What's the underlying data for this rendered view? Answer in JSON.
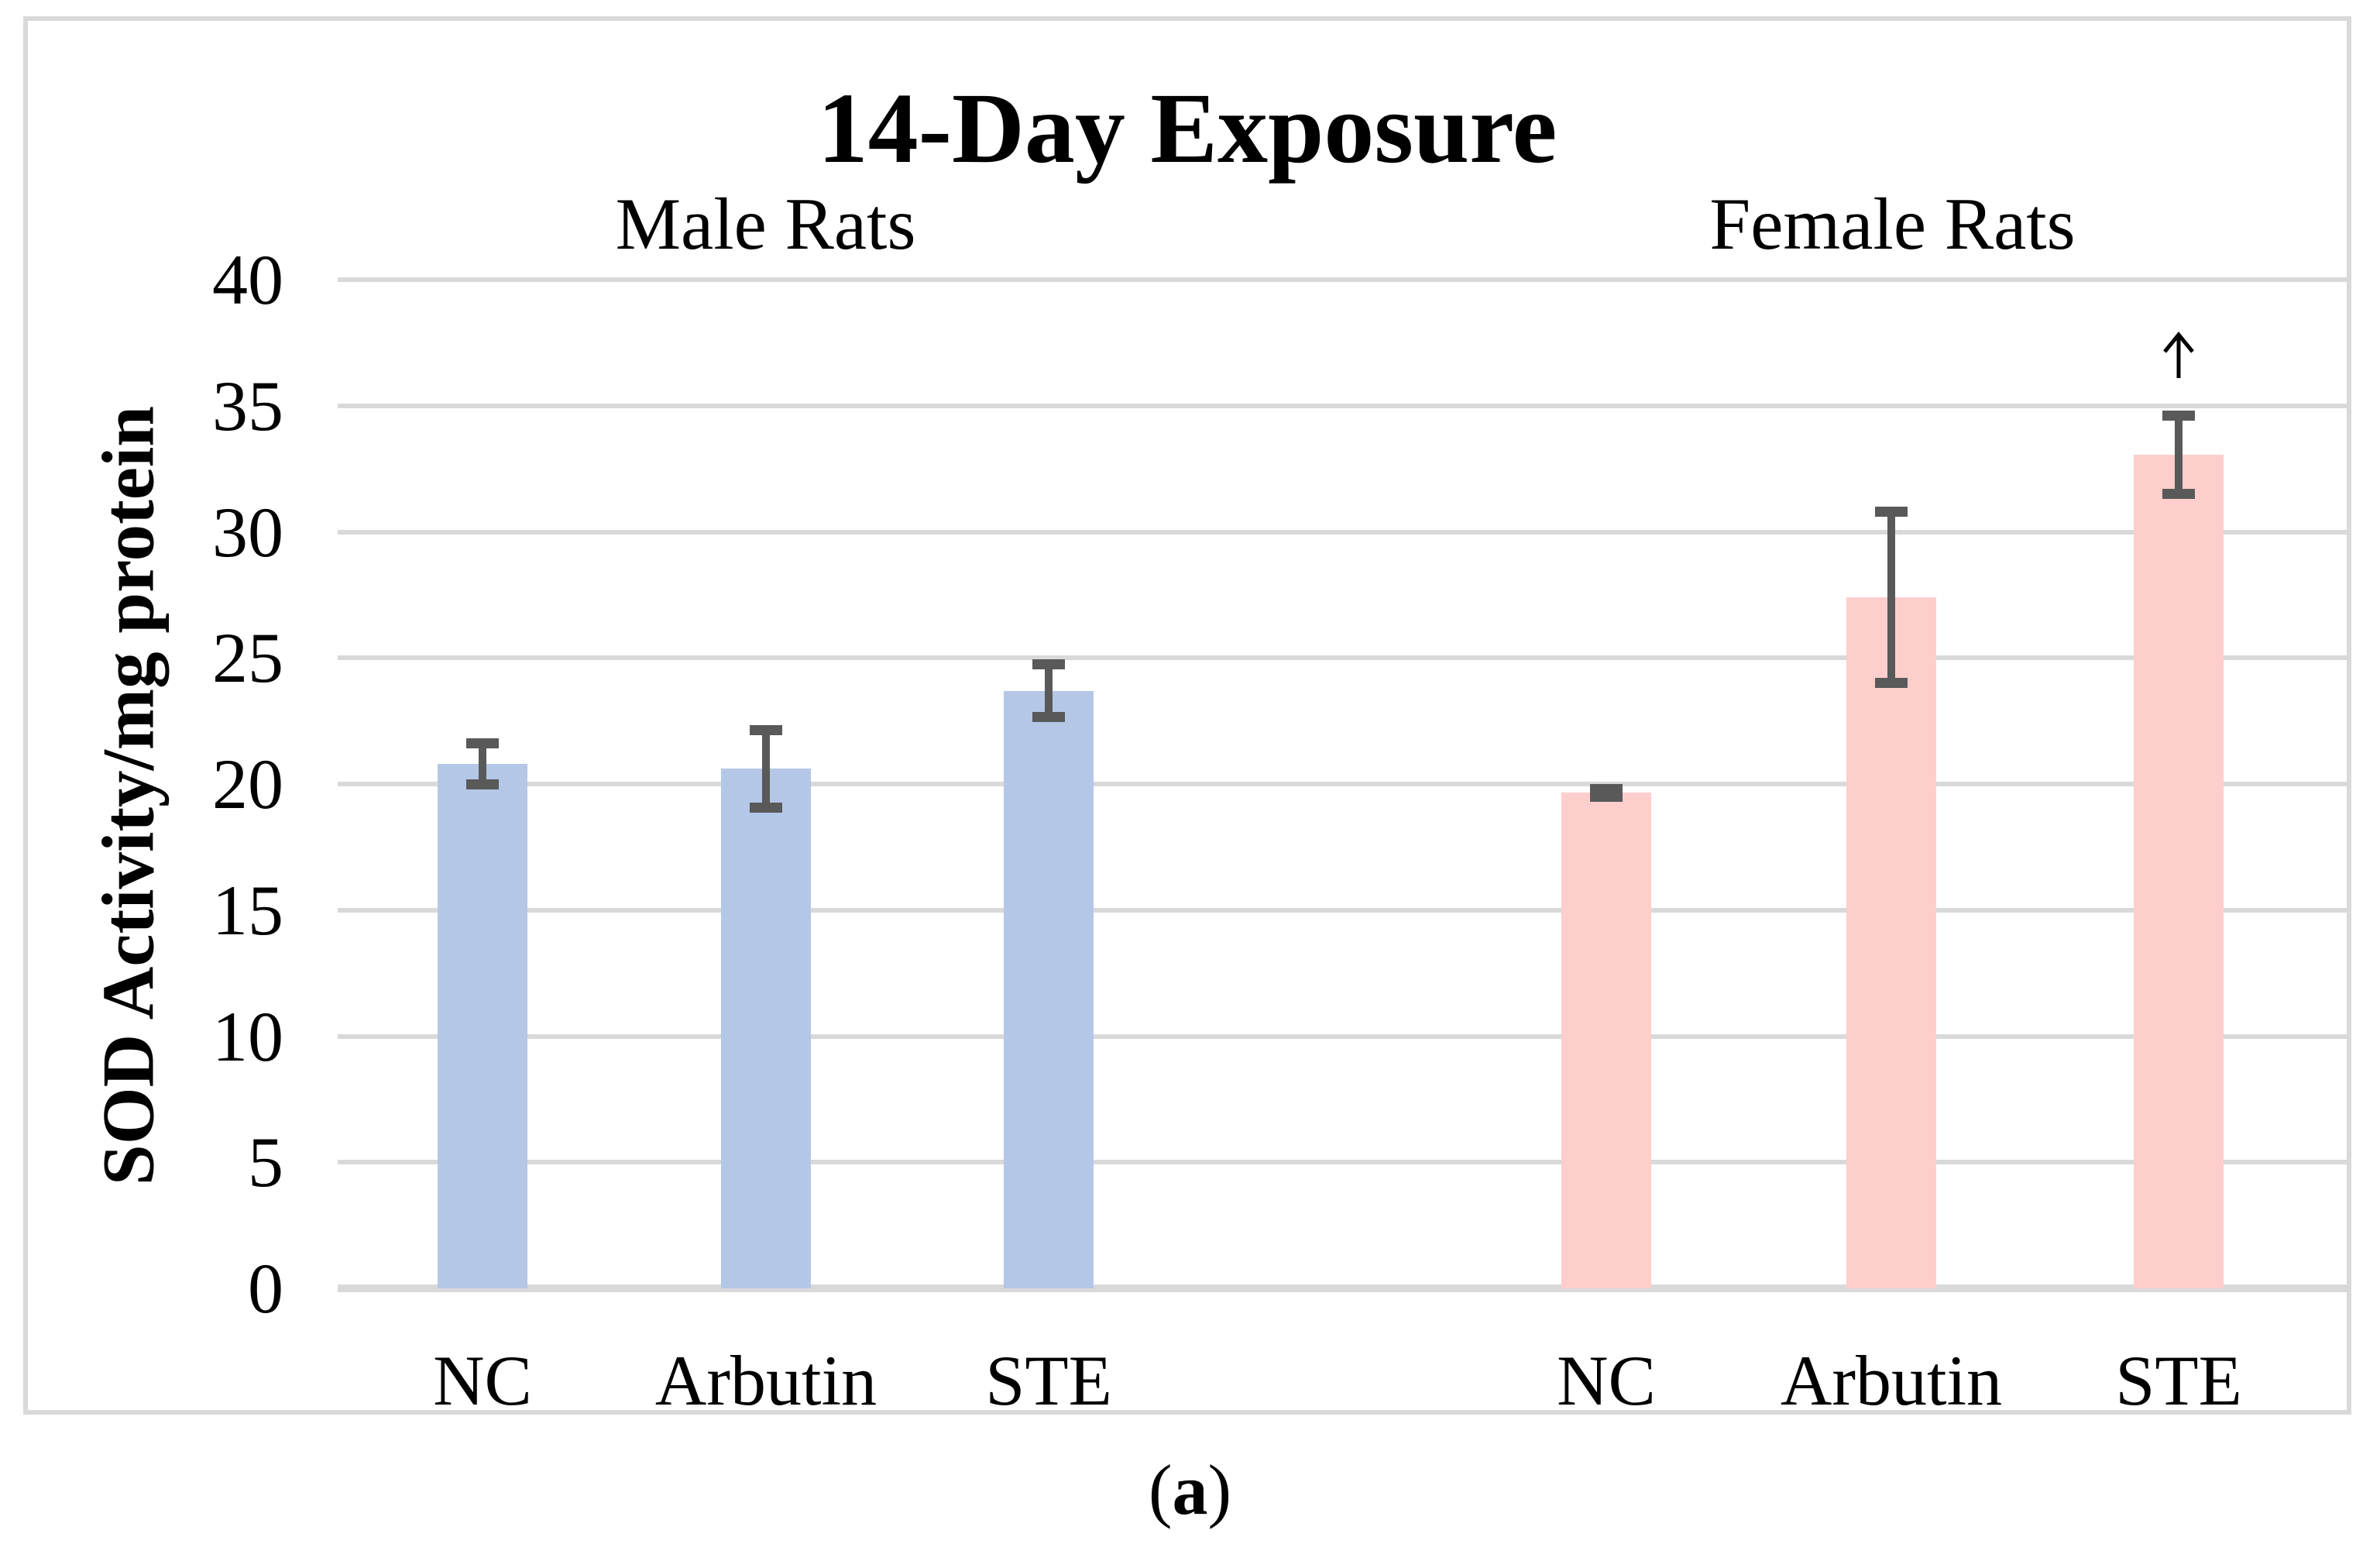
{
  "figure": {
    "caption_open": "(",
    "caption_letter": "a",
    "caption_close": ")"
  },
  "chart_data": {
    "type": "bar",
    "title": "14-Day Exposure",
    "ylabel": "SOD Activity/mg protein",
    "xlabel": "",
    "ylim": [
      0,
      40
    ],
    "yticks": [
      0,
      5,
      10,
      15,
      20,
      25,
      30,
      35,
      40
    ],
    "grid": true,
    "gridline_color": "#D9D9D9",
    "error_bar_color": "#595959",
    "groups": [
      {
        "name": "Male Rats",
        "bar_color": "#B4C7E7",
        "categories": [
          "NC",
          "Arbutin",
          "STE"
        ],
        "values": [
          20.8,
          20.6,
          23.7
        ],
        "errors": [
          1.0,
          1.75,
          1.25
        ],
        "annotations": [
          "",
          "",
          ""
        ]
      },
      {
        "name": "Female Rats",
        "bar_color": "#FDCECC",
        "categories": [
          "NC",
          "Arbutin",
          "STE"
        ],
        "values": [
          19.65,
          27.4,
          33.05
        ],
        "errors": [
          0.35,
          3.6,
          1.75
        ],
        "annotations": [
          "",
          "",
          "↑"
        ]
      }
    ],
    "annotation_note": {
      "symbol": "↑",
      "applies_to": "Female Rats STE"
    }
  }
}
